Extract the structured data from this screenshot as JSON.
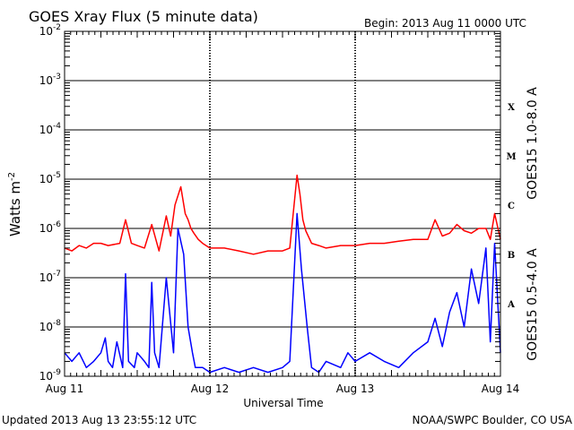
{
  "chart_data": {
    "type": "line",
    "title": "GOES Xray Flux (5 minute data)",
    "begin_label": "Begin:  2013 Aug 11 0000 UTC",
    "xlabel": "Universal Time",
    "ylabel_base": "Watts m",
    "ylabel_exp": "-2",
    "x_ticks": [
      "Aug 11",
      "Aug 12",
      "Aug 13",
      "Aug 14"
    ],
    "x_range_days": [
      0,
      3
    ],
    "y_scale": "log",
    "ylim": [
      1e-09,
      0.01
    ],
    "y_ticks": [
      {
        "base": "10",
        "exp": "-9",
        "value": 1e-09
      },
      {
        "base": "10",
        "exp": "-8",
        "value": 1e-08
      },
      {
        "base": "10",
        "exp": "-7",
        "value": 1e-07
      },
      {
        "base": "10",
        "exp": "-6",
        "value": 1e-06
      },
      {
        "base": "10",
        "exp": "-5",
        "value": 1e-05
      },
      {
        "base": "10",
        "exp": "-4",
        "value": 0.0001
      },
      {
        "base": "10",
        "exp": "-3",
        "value": 0.001
      },
      {
        "base": "10",
        "exp": "-2",
        "value": 0.01
      }
    ],
    "flare_classes": [
      {
        "label": "A",
        "value": 3e-08
      },
      {
        "label": "B",
        "value": 3e-07
      },
      {
        "label": "C",
        "value": 3e-06
      },
      {
        "label": "M",
        "value": 3e-05
      },
      {
        "label": "X",
        "value": 0.0003
      }
    ],
    "grid": true,
    "series": [
      {
        "name": "GOES15 1.0-8.0 A",
        "color": "#ff0000",
        "x": [
          0,
          0.05,
          0.1,
          0.15,
          0.2,
          0.25,
          0.3,
          0.38,
          0.42,
          0.46,
          0.5,
          0.55,
          0.6,
          0.65,
          0.7,
          0.73,
          0.76,
          0.8,
          0.83,
          0.85,
          0.87,
          0.89,
          0.92,
          0.95,
          1.0,
          1.1,
          1.2,
          1.3,
          1.4,
          1.5,
          1.55,
          1.6,
          1.62,
          1.64,
          1.66,
          1.7,
          1.75,
          1.8,
          1.9,
          2.0,
          2.1,
          2.2,
          2.3,
          2.4,
          2.5,
          2.55,
          2.6,
          2.65,
          2.7,
          2.75,
          2.8,
          2.85,
          2.9,
          2.93,
          2.96,
          3.0
        ],
        "values": [
          4e-07,
          3.5e-07,
          4.5e-07,
          4e-07,
          5e-07,
          5e-07,
          4.5e-07,
          5e-07,
          1.5e-06,
          5e-07,
          4.5e-07,
          4e-07,
          1.2e-06,
          3.5e-07,
          1.8e-06,
          7e-07,
          3e-06,
          7e-06,
          2e-06,
          1.5e-06,
          1e-06,
          8e-07,
          6e-07,
          5e-07,
          4e-07,
          4e-07,
          3.5e-07,
          3e-07,
          3.5e-07,
          3.5e-07,
          4e-07,
          1.2e-05,
          5e-06,
          1.5e-06,
          9e-07,
          5e-07,
          4.5e-07,
          4e-07,
          4.5e-07,
          4.5e-07,
          5e-07,
          5e-07,
          5.5e-07,
          6e-07,
          6e-07,
          1.5e-06,
          7e-07,
          8e-07,
          1.2e-06,
          9e-07,
          8e-07,
          1e-06,
          1e-06,
          6e-07,
          2e-06,
          6e-07
        ]
      },
      {
        "name": "GOES15 0.5-4.0 A",
        "color": "#0000ff",
        "x": [
          0,
          0.05,
          0.1,
          0.15,
          0.2,
          0.25,
          0.28,
          0.3,
          0.33,
          0.36,
          0.4,
          0.42,
          0.44,
          0.48,
          0.5,
          0.55,
          0.58,
          0.6,
          0.62,
          0.65,
          0.7,
          0.75,
          0.78,
          0.82,
          0.85,
          0.88,
          0.9,
          0.95,
          1.0,
          1.1,
          1.2,
          1.3,
          1.4,
          1.5,
          1.55,
          1.6,
          1.63,
          1.67,
          1.7,
          1.75,
          1.8,
          1.9,
          1.95,
          2.0,
          2.1,
          2.2,
          2.3,
          2.4,
          2.5,
          2.55,
          2.6,
          2.65,
          2.7,
          2.75,
          2.8,
          2.85,
          2.9,
          2.93,
          2.96,
          3.0
        ],
        "values": [
          3e-09,
          2e-09,
          3e-09,
          1.5e-09,
          2e-09,
          3e-09,
          6e-09,
          2e-09,
          1.5e-09,
          5e-09,
          1.5e-09,
          1.2e-07,
          2e-09,
          1.5e-09,
          3e-09,
          2e-09,
          1.5e-09,
          8e-08,
          3e-09,
          1.5e-09,
          1e-07,
          3e-09,
          1e-06,
          3e-07,
          1e-08,
          3e-09,
          1.5e-09,
          1.5e-09,
          1.2e-09,
          1.5e-09,
          1.2e-09,
          1.5e-09,
          1.2e-09,
          1.5e-09,
          2e-09,
          2e-06,
          1.5e-07,
          1e-08,
          1.5e-09,
          1.2e-09,
          2e-09,
          1.5e-09,
          3e-09,
          2e-09,
          3e-09,
          2e-09,
          1.5e-09,
          3e-09,
          5e-09,
          1.5e-08,
          4e-09,
          2e-08,
          5e-08,
          1e-08,
          1.5e-07,
          3e-08,
          4e-07,
          5e-09,
          5e-07,
          3e-09
        ]
      }
    ]
  },
  "footer": {
    "updated": "Updated 2013 Aug 13 23:55:12 UTC",
    "source": "NOAA/SWPC Boulder, CO USA"
  }
}
